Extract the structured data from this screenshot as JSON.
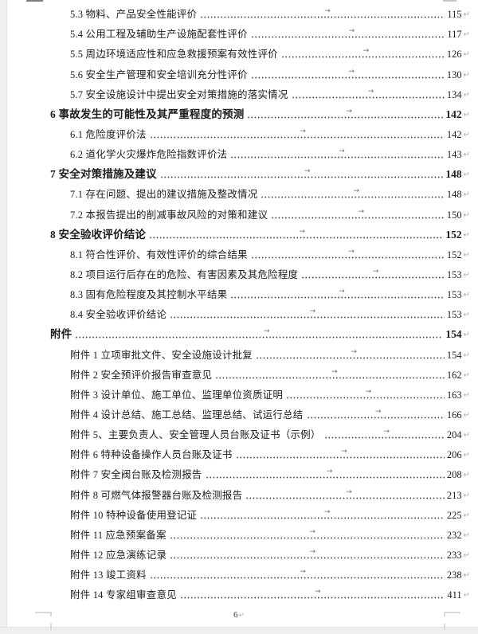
{
  "marks": {
    "tab_arrow": "→",
    "pilcrow": "↵"
  },
  "footer": {
    "page_number": "6"
  },
  "colors": {
    "text": "#1c1c1c",
    "leader_dot": "#454545",
    "pilcrow_blue": "#9cb4cc",
    "app_background": "#efefef",
    "crop_mark": "#d9d9d9"
  },
  "toc": {
    "rows": [
      {
        "text": "5.3 物料、产品安全性能评价",
        "page": "115",
        "level": 2
      },
      {
        "text": "5.4 公用工程及辅助生产设施配套性评价",
        "page": "117",
        "level": 2
      },
      {
        "text": "5.5 周边环境适应性和应急救援预案有效性评价",
        "page": "126",
        "level": 2
      },
      {
        "text": "5.6 安全生产管理和安全培训充分性评价",
        "page": "130",
        "level": 2
      },
      {
        "text": "5.7 安全设施设计中提出安全对策措施的落实情况",
        "page": "134",
        "level": 2
      },
      {
        "text": "6 事故发生的可能性及其严重程度的预测",
        "page": "142",
        "level": 1
      },
      {
        "text": "6.1 危险度评价法",
        "page": "142",
        "level": 2
      },
      {
        "text": "6.2 道化学火灾爆炸危险指数评价法",
        "page": "143",
        "level": 2
      },
      {
        "text": "7 安全对策措施及建议",
        "page": "148",
        "level": 1
      },
      {
        "text": "7.1 存在问题、提出的建议措施及整改情况",
        "page": "148",
        "level": 2
      },
      {
        "text": "7.2 本报告提出的削减事故风险的对策和建议",
        "page": "150",
        "level": 2
      },
      {
        "text": "8 安全验收评价结论",
        "page": "152",
        "level": 1
      },
      {
        "text": "8.1 符合性评价、有效性评价的综合结果",
        "page": "152",
        "level": 2
      },
      {
        "text": "8.2 项目运行后存在的危险、有害因素及其危险程度",
        "page": "153",
        "level": 2
      },
      {
        "text": "8.3 固有危险程度及其控制水平结果",
        "page": "153",
        "level": 2
      },
      {
        "text": "8.4 安全验收评价结论",
        "page": "153",
        "level": 2
      },
      {
        "text": "附件",
        "page": "154",
        "level": 1
      },
      {
        "text": "附件 1 立项审批文件、安全设施设计批复",
        "page": "154",
        "level": 2
      },
      {
        "text": "附件 2 安全预评价报告审查意见",
        "page": "162",
        "level": 2
      },
      {
        "text": "附件 3 设计单位、施工单位、监理单位资质证明",
        "page": "163",
        "level": 2
      },
      {
        "text": "附件 4 设计总结、施工总结、监理总结、试运行总结",
        "page": "166",
        "level": 2
      },
      {
        "text": "附件 5、主要负责人、安全管理人员台账及证书（示例）",
        "page": "204",
        "level": 2
      },
      {
        "text": "附件 6 特种设备操作人员台账及证书",
        "page": "206",
        "level": 2
      },
      {
        "text": "附件 7 安全阀台账及检测报告",
        "page": "208",
        "level": 2
      },
      {
        "text": "附件 8 可燃气体报警器台账及检测报告",
        "page": "213",
        "level": 2
      },
      {
        "text": "附件 10 特种设备使用登记证",
        "page": "225",
        "level": 2
      },
      {
        "text": "附件 11 应急预案备案",
        "page": "232",
        "level": 2
      },
      {
        "text": "附件 12 应急演练记录",
        "page": "233",
        "level": 2
      },
      {
        "text": "附件 13 竣工资料",
        "page": "238",
        "level": 2
      },
      {
        "text": "附件 14 专家组审查意见",
        "page": "411",
        "level": 2
      }
    ]
  }
}
